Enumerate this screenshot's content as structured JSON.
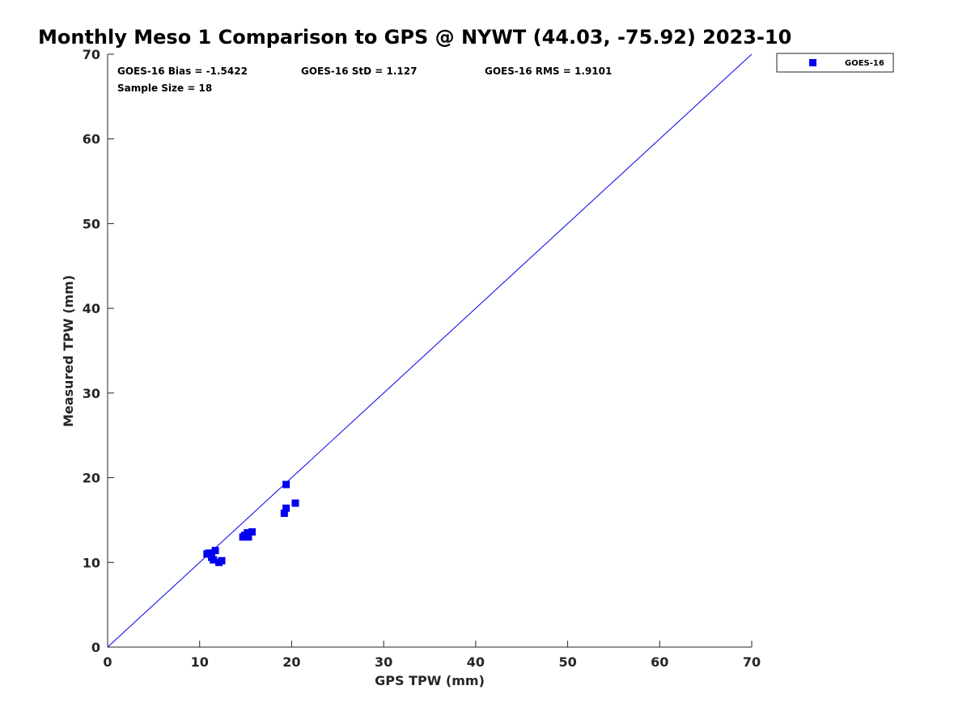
{
  "chart_data": {
    "type": "scatter",
    "title": "Monthly Meso 1 Comparison to GPS @ NYWT (44.03, -75.92) 2023-10",
    "xlabel": "GPS TPW (mm)",
    "ylabel": "Measured TPW (mm)",
    "xlim": [
      0,
      70
    ],
    "ylim": [
      0,
      70
    ],
    "x_ticks": [
      0,
      10,
      20,
      30,
      40,
      50,
      60,
      70
    ],
    "y_ticks": [
      0,
      10,
      20,
      30,
      40,
      50,
      60,
      70
    ],
    "grid": false,
    "legend_position": "outside-top-right",
    "reference_line": {
      "from": [
        0,
        0
      ],
      "to": [
        70,
        70
      ],
      "color": "#0000ee"
    },
    "stats": {
      "bias": "GOES-16 Bias = -1.5422",
      "std": "GOES-16 StD = 1.127",
      "rms": "GOES-16 RMS = 1.9101",
      "sample_size": "Sample Size = 18"
    },
    "series": [
      {
        "name": "GOES-16",
        "color": "#0000ee",
        "marker": "square",
        "points": [
          [
            10.8,
            11.0
          ],
          [
            11.1,
            11.0
          ],
          [
            11.3,
            10.6
          ],
          [
            11.5,
            10.3
          ],
          [
            11.7,
            11.4
          ],
          [
            12.1,
            10.0
          ],
          [
            12.4,
            10.2
          ],
          [
            14.7,
            13.0
          ],
          [
            15.0,
            13.1
          ],
          [
            15.2,
            13.5
          ],
          [
            15.3,
            13.0
          ],
          [
            15.7,
            13.6
          ],
          [
            19.2,
            15.8
          ],
          [
            19.4,
            16.4
          ],
          [
            19.4,
            19.2
          ],
          [
            20.4,
            17.0
          ],
          [
            11.0,
            11.1
          ],
          [
            14.9,
            13.2
          ]
        ]
      }
    ]
  }
}
